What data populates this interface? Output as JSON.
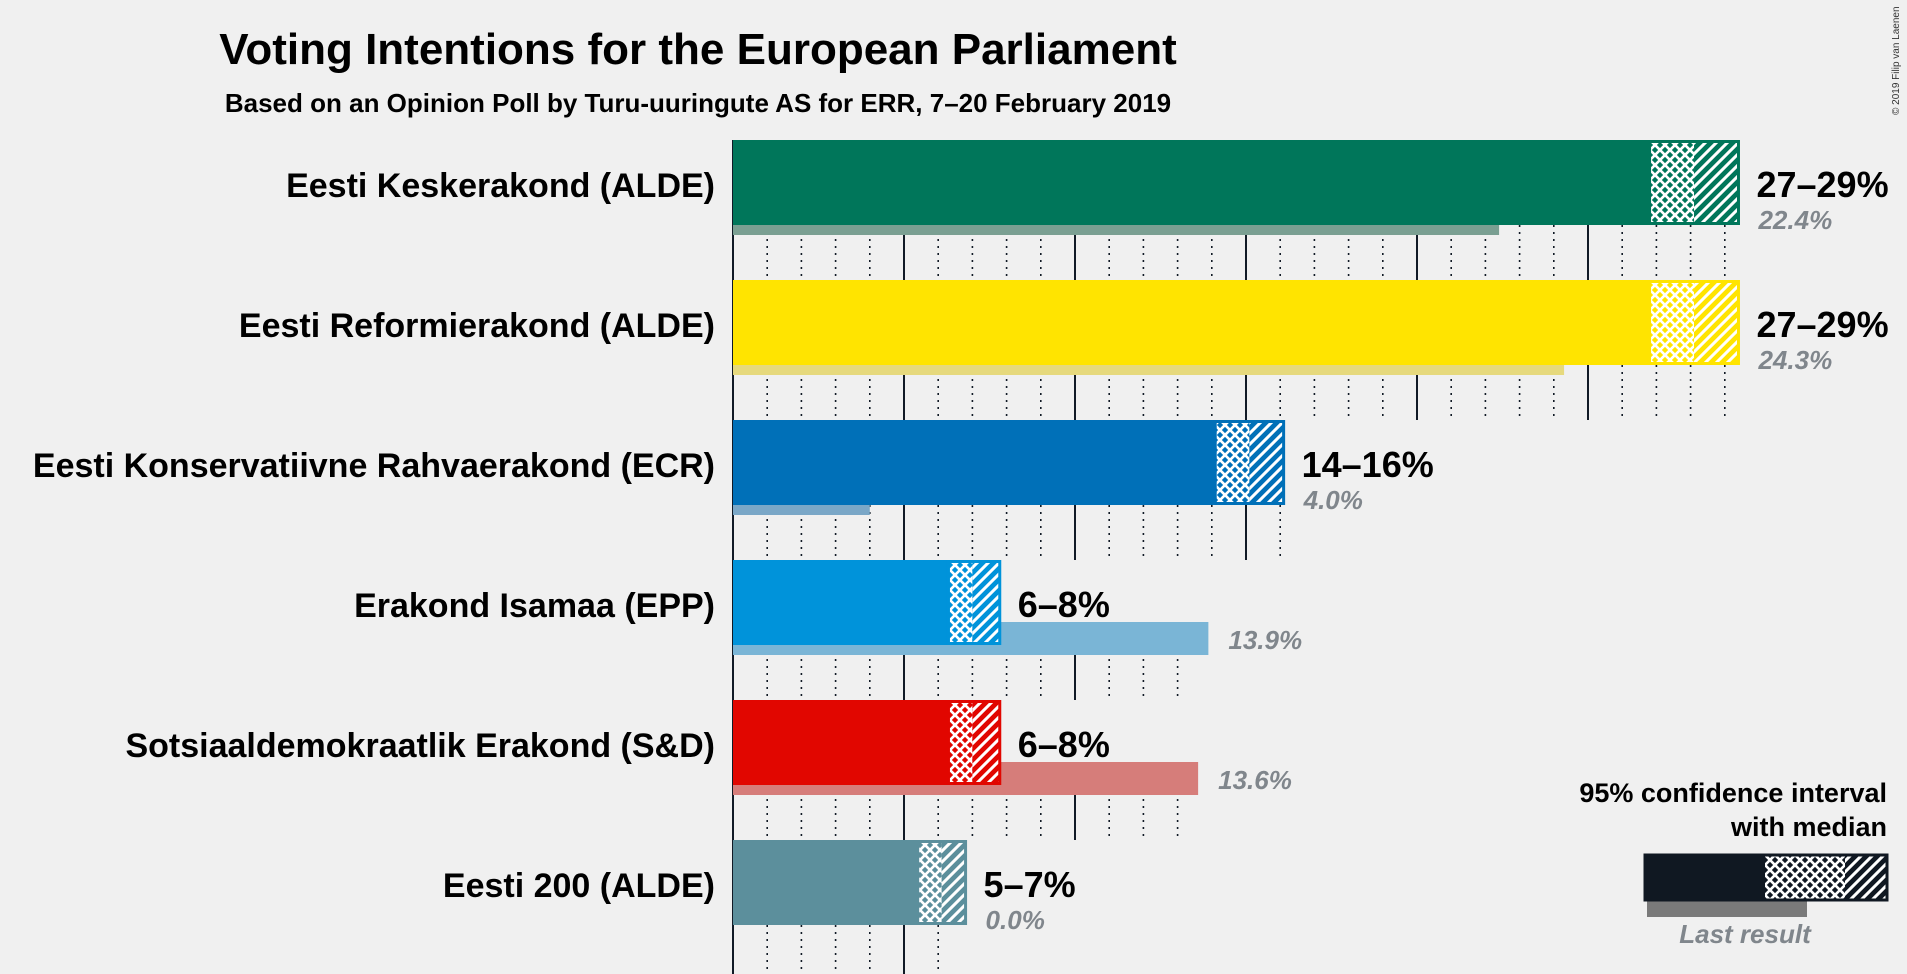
{
  "chart_data": {
    "type": "bar",
    "title": "Voting Intentions for the European Parliament",
    "subtitle": "Based on an Opinion Poll by Turu-uuringute AS for ERR, 7–20 February 2019",
    "copyright": "© 2019 Filip van Laenen",
    "xlim": [
      0,
      29.5
    ],
    "grid": true,
    "legend": {
      "position": "bottom-right",
      "ci_label_line1": "95% confidence interval",
      "ci_label_line2": "with median",
      "last_result_label": "Last result"
    },
    "parties": [
      {
        "name": "Eesti Keskerakond (ALDE)",
        "color": "#00765a",
        "last_color": "#7a9f92",
        "ci_low": 26.8,
        "median": 28.1,
        "ci_high": 29.4,
        "range_label": "27–29%",
        "last_result": 22.4,
        "last_result_label": "22.4%"
      },
      {
        "name": "Eesti Reformierakond (ALDE)",
        "color": "#ffe400",
        "last_color": "#e6d97d",
        "ci_low": 26.8,
        "median": 28.1,
        "ci_high": 29.4,
        "range_label": "27–29%",
        "last_result": 24.3,
        "last_result_label": "24.3%"
      },
      {
        "name": "Eesti Konservatiivne Rahvaerakond (ECR)",
        "color": "#0070b8",
        "last_color": "#7aa7c7",
        "ci_low": 14.1,
        "median": 15.1,
        "ci_high": 16.1,
        "range_label": "14–16%",
        "last_result": 4.0,
        "last_result_label": "4.0%"
      },
      {
        "name": "Erakond Isamaa (EPP)",
        "color": "#0093da",
        "last_color": "#7ab5d6",
        "ci_low": 6.3,
        "median": 7.0,
        "ci_high": 7.8,
        "range_label": "6–8%",
        "last_result": 13.9,
        "last_result_label": "13.9%"
      },
      {
        "name": "Sotsiaaldemokraatlik Erakond (S&D)",
        "color": "#e10600",
        "last_color": "#d67d7a",
        "ci_low": 6.3,
        "median": 7.0,
        "ci_high": 7.8,
        "range_label": "6–8%",
        "last_result": 13.6,
        "last_result_label": "13.6%"
      },
      {
        "name": "Eesti 200 (ALDE)",
        "color": "#5c8f9c",
        "last_color": "#a5bcc2",
        "ci_low": 5.4,
        "median": 6.1,
        "ci_high": 6.8,
        "range_label": "5–7%",
        "last_result": 0.0,
        "last_result_label": "0.0%"
      }
    ]
  }
}
